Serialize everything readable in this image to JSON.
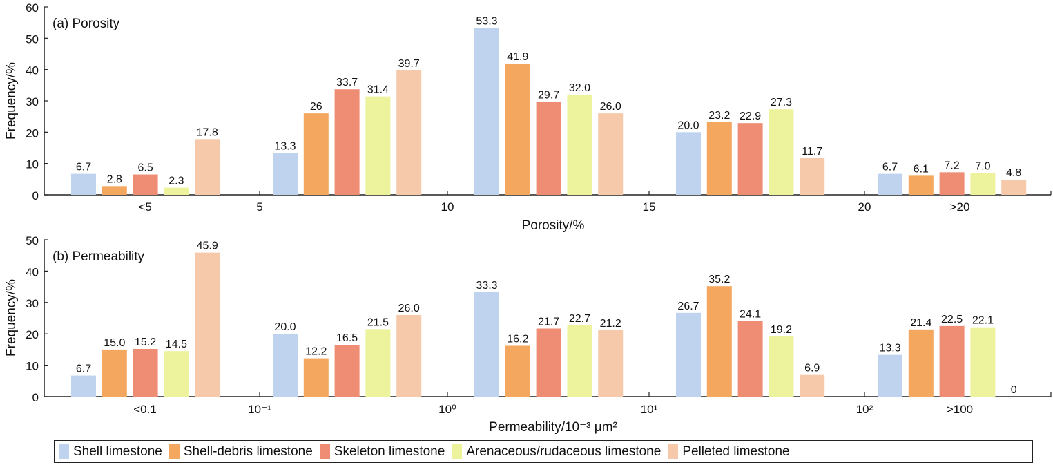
{
  "series_colors": [
    "#bfd3ef",
    "#f3a75f",
    "#ee8d73",
    "#edf29d",
    "#f6c9ab"
  ],
  "chart_data": [
    {
      "type": "bar",
      "title": "(a) Porosity",
      "xlabel": "Porosity/%",
      "ylabel": "Frequency/%",
      "ylim": [
        0,
        60
      ],
      "yticks": [
        "0",
        "10",
        "20",
        "30",
        "40",
        "50",
        "60"
      ],
      "categories": [
        "<5",
        "5-10",
        "10-15",
        "15-20",
        ">20"
      ],
      "x_tick_labels": [
        "<5",
        "5",
        "10",
        "15",
        "20",
        ">20"
      ],
      "series": [
        {
          "name": "Shell limestone",
          "values": [
            6.7,
            13.3,
            53.3,
            20.0,
            6.7
          ],
          "labels": [
            "6.7",
            "13.3",
            "53.3",
            "20.0",
            "6.7"
          ]
        },
        {
          "name": "Shell-debris limestone",
          "values": [
            2.8,
            26,
            41.9,
            23.2,
            6.1
          ],
          "labels": [
            "2.8",
            "26",
            "41.9",
            "23.2",
            "6.1"
          ]
        },
        {
          "name": "Skeleton limestone",
          "values": [
            6.5,
            33.7,
            29.7,
            22.9,
            7.2
          ],
          "labels": [
            "6.5",
            "33.7",
            "29.7",
            "22.9",
            "7.2"
          ]
        },
        {
          "name": "Arenaceous/rudaceous limestone",
          "values": [
            2.3,
            31.4,
            32.0,
            27.3,
            7.0
          ],
          "labels": [
            "2.3",
            "31.4",
            "32.0",
            "27.3",
            "7.0"
          ]
        },
        {
          "name": "Pelleted limestone",
          "values": [
            17.8,
            39.7,
            26.0,
            11.7,
            4.8
          ],
          "labels": [
            "17.8",
            "39.7",
            "26.0",
            "11.7",
            "4.8"
          ]
        }
      ]
    },
    {
      "type": "bar",
      "title": "(b) Permeability",
      "xlabel": "Permeability/10⁻³ μm²",
      "ylabel": "Frequency/%",
      "ylim": [
        0,
        50
      ],
      "yticks": [
        "0",
        "10",
        "20",
        "30",
        "40",
        "50"
      ],
      "categories": [
        "<0.1",
        "0.1-1",
        "1-10",
        "10-100",
        ">100"
      ],
      "x_tick_labels": [
        "<0.1",
        "10⁻¹",
        "10⁰",
        "10¹",
        "10²",
        ">100"
      ],
      "series": [
        {
          "name": "Shell limestone",
          "values": [
            6.7,
            20.0,
            33.3,
            26.7,
            13.3
          ],
          "labels": [
            "6.7",
            "20.0",
            "33.3",
            "26.7",
            "13.3"
          ]
        },
        {
          "name": "Shell-debris limestone",
          "values": [
            15.0,
            12.2,
            16.2,
            35.2,
            21.4
          ],
          "labels": [
            "15.0",
            "12.2",
            "16.2",
            "35.2",
            "21.4"
          ]
        },
        {
          "name": "Skeleton limestone",
          "values": [
            15.2,
            16.5,
            21.7,
            24.1,
            22.5
          ],
          "labels": [
            "15.2",
            "16.5",
            "21.7",
            "24.1",
            "22.5"
          ]
        },
        {
          "name": "Arenaceous/rudaceous limestone",
          "values": [
            14.5,
            21.5,
            22.7,
            19.2,
            22.1
          ],
          "labels": [
            "14.5",
            "21.5",
            "22.7",
            "19.2",
            "22.1"
          ]
        },
        {
          "name": "Pelleted limestone",
          "values": [
            45.9,
            26.0,
            21.2,
            6.9,
            0
          ],
          "labels": [
            "45.9",
            "26.0",
            "21.2",
            "6.9",
            "0"
          ]
        }
      ]
    }
  ],
  "legend": {
    "placement": "bottom",
    "items": [
      {
        "label": "Shell limestone",
        "color": "#bfd3ef"
      },
      {
        "label": "Shell-debris limestone",
        "color": "#f3a75f"
      },
      {
        "label": "Skeleton limestone",
        "color": "#ee8d73"
      },
      {
        "label": "Arenaceous/rudaceous limestone",
        "color": "#edf29d"
      },
      {
        "label": "Pelleted limestone",
        "color": "#f6c9ab"
      }
    ]
  }
}
